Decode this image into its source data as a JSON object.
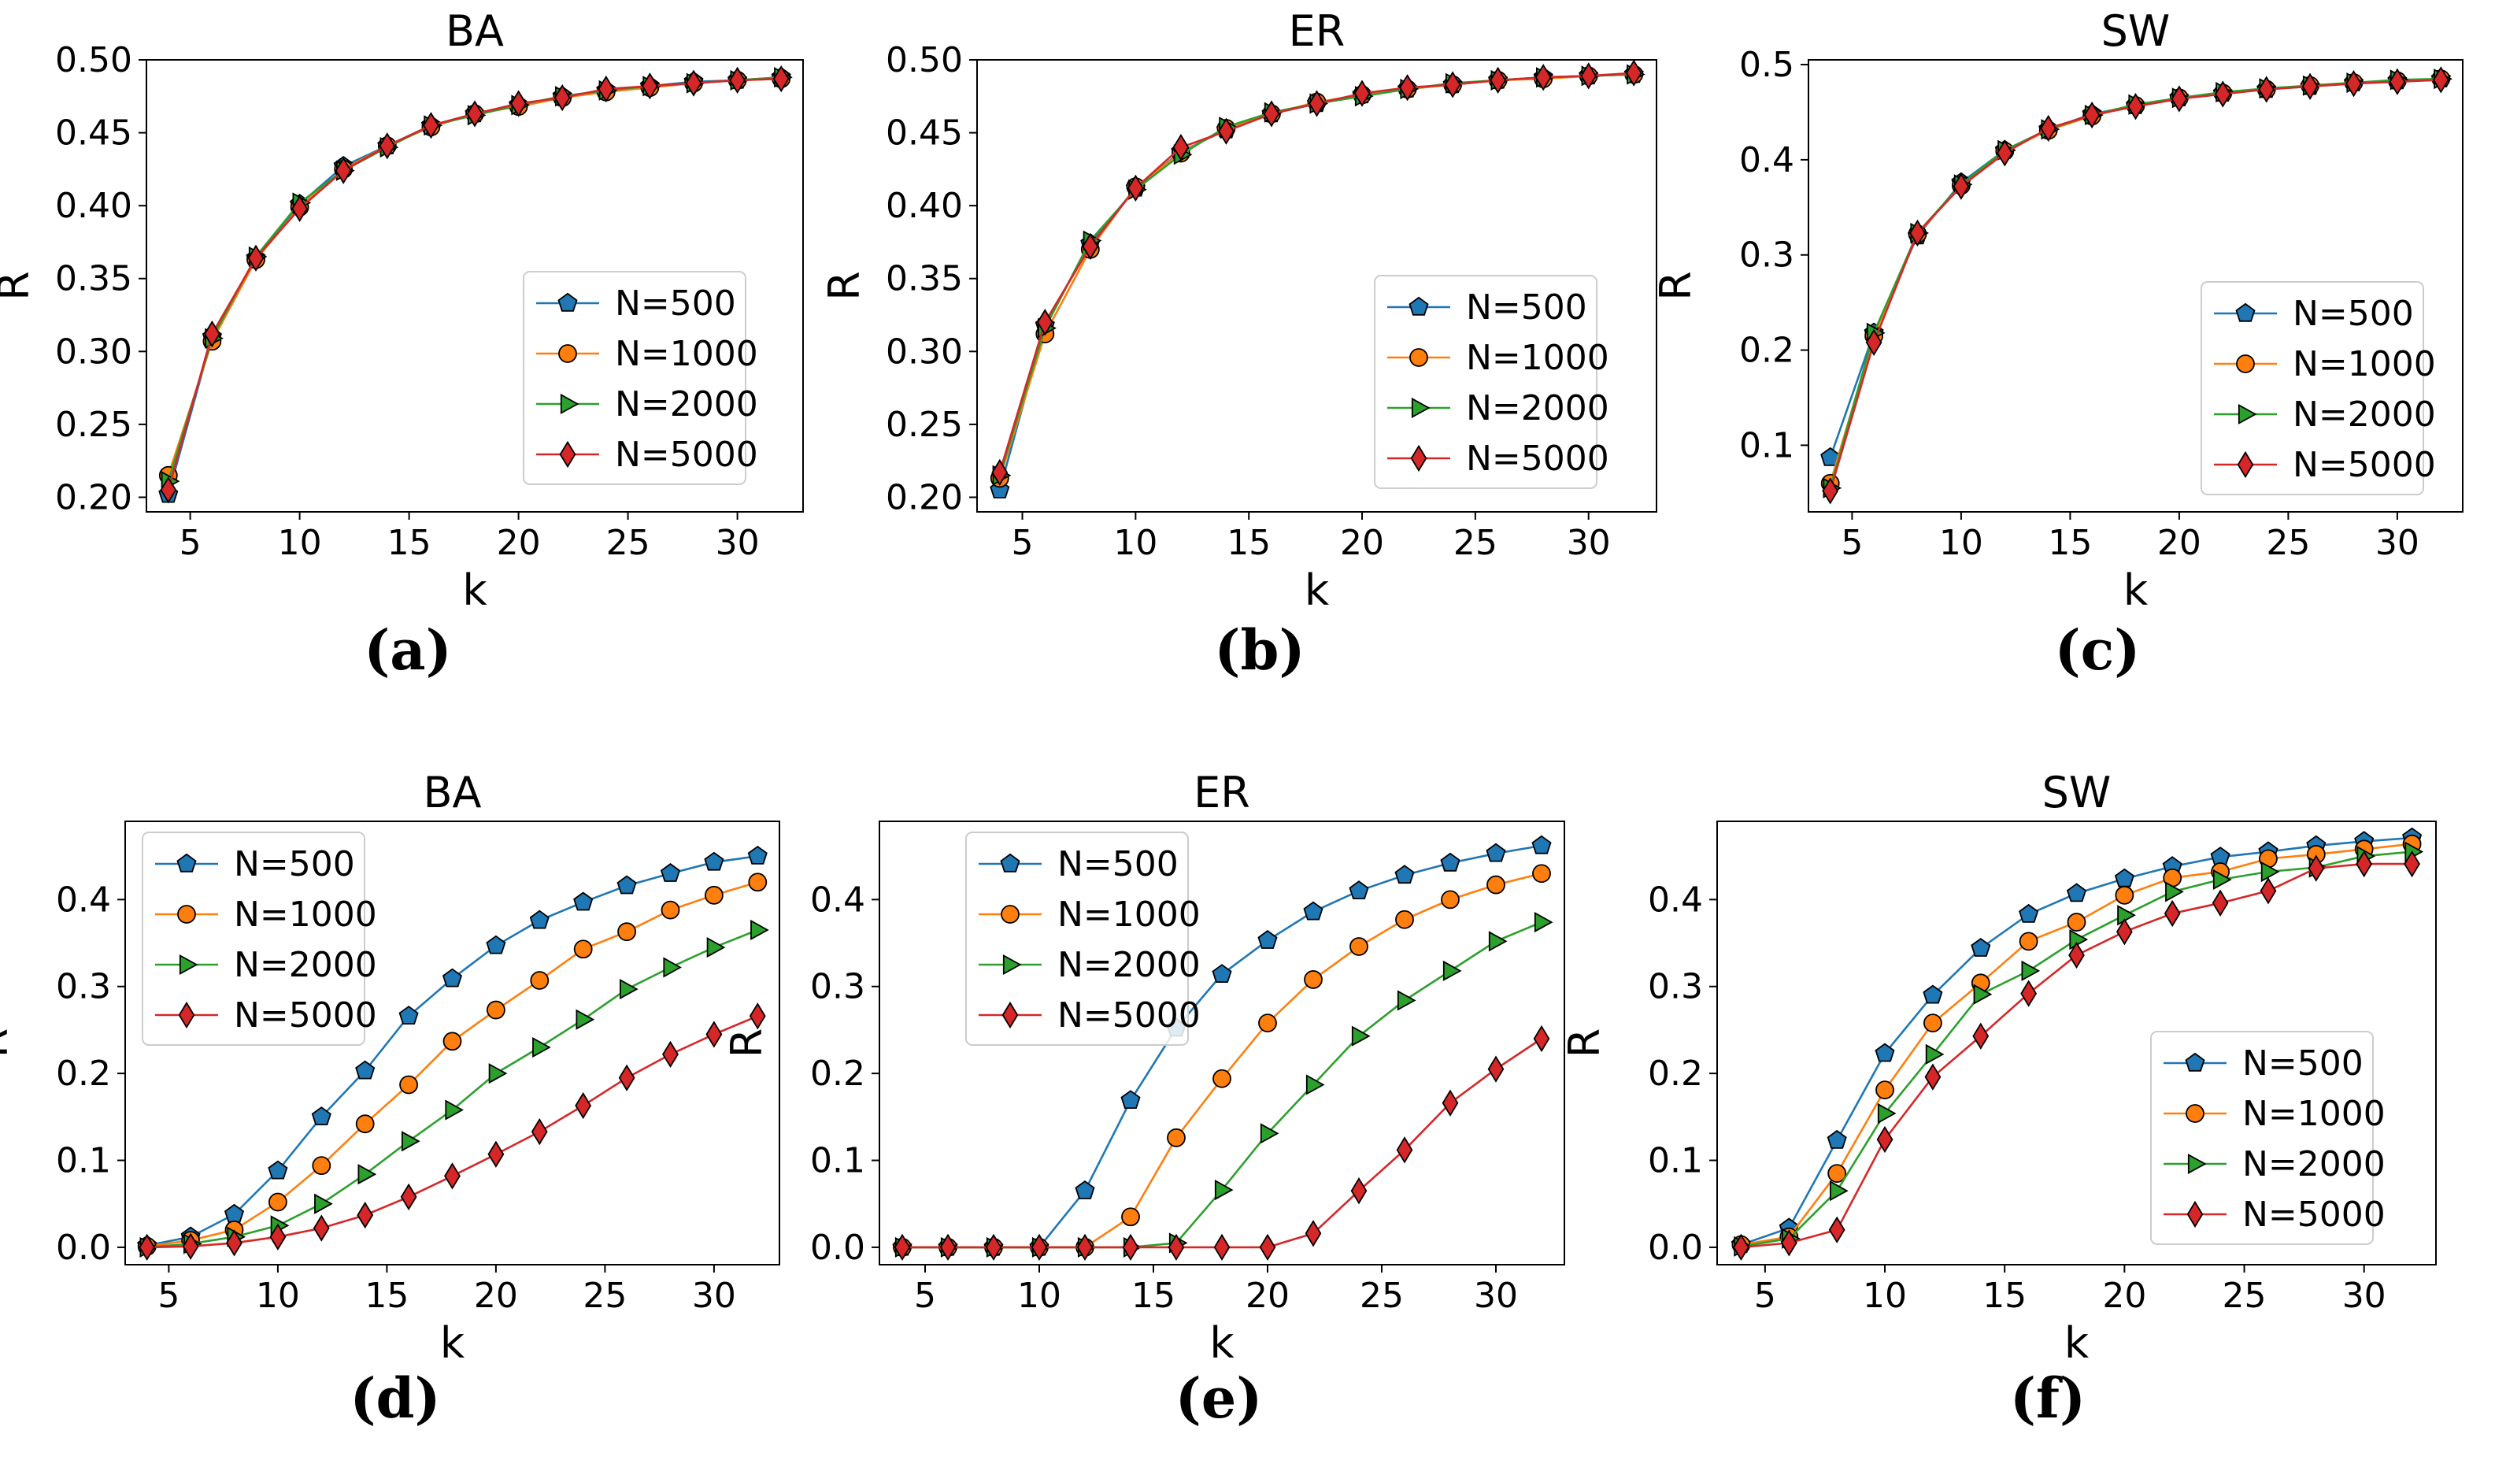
{
  "colors": {
    "N500": "#1f77b4",
    "N1000": "#ff7f0e",
    "N2000": "#2ca02c",
    "N5000": "#d62728",
    "axis": "#000000",
    "marker_edge": "#000000"
  },
  "chart_data": [
    {
      "type": "line",
      "panel_label": "(a)",
      "title": "BA",
      "xlabel": "k",
      "ylabel": "R",
      "xlim": [
        3,
        33
      ],
      "ylim": [
        0.19,
        0.5
      ],
      "xticks": [
        5,
        10,
        15,
        20,
        25,
        30
      ],
      "yticks": [
        0.2,
        0.25,
        0.3,
        0.35,
        0.4,
        0.45,
        0.5
      ],
      "ytick_labels": [
        "0.20",
        "0.25",
        "0.30",
        "0.35",
        "0.40",
        "0.45",
        "0.50"
      ],
      "legend_position": "lower-right",
      "x": [
        4,
        6,
        8,
        10,
        12,
        14,
        16,
        18,
        20,
        22,
        24,
        26,
        28,
        30,
        32
      ],
      "series": [
        {
          "name": "N=500",
          "marker": "pentagon",
          "color_key": "N500",
          "values": [
            0.202,
            0.31,
            0.364,
            0.401,
            0.427,
            0.441,
            0.455,
            0.463,
            0.469,
            0.475,
            0.479,
            0.482,
            0.485,
            0.486,
            0.488
          ]
        },
        {
          "name": "N=1000",
          "marker": "circle",
          "color_key": "N1000",
          "values": [
            0.215,
            0.307,
            0.363,
            0.399,
            0.425,
            0.441,
            0.454,
            0.463,
            0.468,
            0.474,
            0.478,
            0.481,
            0.484,
            0.486,
            0.487
          ]
        },
        {
          "name": "N=2000",
          "marker": "triangle-right",
          "color_key": "N2000",
          "values": [
            0.211,
            0.309,
            0.365,
            0.402,
            0.424,
            0.44,
            0.455,
            0.462,
            0.469,
            0.475,
            0.479,
            0.482,
            0.484,
            0.486,
            0.488
          ]
        },
        {
          "name": "N=5000",
          "marker": "diamond",
          "color_key": "N5000",
          "values": [
            0.205,
            0.312,
            0.364,
            0.398,
            0.424,
            0.441,
            0.455,
            0.463,
            0.47,
            0.474,
            0.48,
            0.482,
            0.484,
            0.486,
            0.487
          ]
        }
      ]
    },
    {
      "type": "line",
      "panel_label": "(b)",
      "title": "ER",
      "xlabel": "k",
      "ylabel": "R",
      "xlim": [
        3,
        33
      ],
      "ylim": [
        0.19,
        0.5
      ],
      "xticks": [
        5,
        10,
        15,
        20,
        25,
        30
      ],
      "yticks": [
        0.2,
        0.25,
        0.3,
        0.35,
        0.4,
        0.45,
        0.5
      ],
      "ytick_labels": [
        "0.20",
        "0.25",
        "0.30",
        "0.35",
        "0.40",
        "0.45",
        "0.50"
      ],
      "legend_position": "lower-right",
      "x": [
        4,
        6,
        8,
        10,
        12,
        14,
        16,
        18,
        20,
        22,
        24,
        26,
        28,
        30,
        32
      ],
      "series": [
        {
          "name": "N=500",
          "marker": "pentagon",
          "color_key": "N500",
          "values": [
            0.205,
            0.318,
            0.374,
            0.412,
            0.437,
            0.452,
            0.463,
            0.47,
            0.476,
            0.48,
            0.483,
            0.486,
            0.488,
            0.489,
            0.49
          ]
        },
        {
          "name": "N=1000",
          "marker": "circle",
          "color_key": "N1000",
          "values": [
            0.213,
            0.312,
            0.37,
            0.413,
            0.436,
            0.453,
            0.463,
            0.471,
            0.476,
            0.48,
            0.483,
            0.486,
            0.487,
            0.489,
            0.49
          ]
        },
        {
          "name": "N=2000",
          "marker": "triangle-right",
          "color_key": "N2000",
          "values": [
            0.215,
            0.316,
            0.376,
            0.411,
            0.435,
            0.454,
            0.464,
            0.47,
            0.475,
            0.48,
            0.484,
            0.486,
            0.488,
            0.489,
            0.49
          ]
        },
        {
          "name": "N=5000",
          "marker": "diamond",
          "color_key": "N5000",
          "values": [
            0.217,
            0.32,
            0.372,
            0.412,
            0.44,
            0.451,
            0.463,
            0.47,
            0.477,
            0.481,
            0.483,
            0.486,
            0.488,
            0.489,
            0.491
          ]
        }
      ]
    },
    {
      "type": "line",
      "panel_label": "(c)",
      "title": "SW",
      "xlabel": "k",
      "ylabel": "R",
      "xlim": [
        3,
        33
      ],
      "ylim": [
        0.03,
        0.505
      ],
      "xticks": [
        5,
        10,
        15,
        20,
        25,
        30
      ],
      "yticks": [
        0.1,
        0.2,
        0.3,
        0.4,
        0.5
      ],
      "ytick_labels": [
        "0.1",
        "0.2",
        "0.3",
        "0.4",
        "0.5"
      ],
      "legend_position": "lower-right",
      "x": [
        4,
        6,
        8,
        10,
        12,
        14,
        16,
        18,
        20,
        22,
        24,
        26,
        28,
        30,
        32
      ],
      "series": [
        {
          "name": "N=500",
          "marker": "pentagon",
          "color_key": "N500",
          "values": [
            0.087,
            0.218,
            0.32,
            0.376,
            0.41,
            0.432,
            0.448,
            0.457,
            0.465,
            0.47,
            0.474,
            0.477,
            0.481,
            0.483,
            0.485
          ]
        },
        {
          "name": "N=1000",
          "marker": "circle",
          "color_key": "N1000",
          "values": [
            0.06,
            0.215,
            0.322,
            0.373,
            0.409,
            0.431,
            0.446,
            0.457,
            0.465,
            0.47,
            0.474,
            0.478,
            0.481,
            0.483,
            0.485
          ]
        },
        {
          "name": "N=2000",
          "marker": "triangle-right",
          "color_key": "N2000",
          "values": [
            0.055,
            0.218,
            0.323,
            0.374,
            0.41,
            0.432,
            0.447,
            0.458,
            0.465,
            0.471,
            0.475,
            0.478,
            0.481,
            0.484,
            0.485
          ]
        },
        {
          "name": "N=5000",
          "marker": "diamond",
          "color_key": "N5000",
          "values": [
            0.052,
            0.208,
            0.323,
            0.372,
            0.407,
            0.433,
            0.447,
            0.456,
            0.464,
            0.469,
            0.474,
            0.477,
            0.48,
            0.482,
            0.484
          ]
        }
      ]
    },
    {
      "type": "line",
      "panel_label": "(d)",
      "title": "BA",
      "xlabel": "k",
      "ylabel": "R",
      "xlim": [
        3,
        33
      ],
      "ylim": [
        -0.02,
        0.49
      ],
      "xticks": [
        5,
        10,
        15,
        20,
        25,
        30
      ],
      "yticks": [
        0.0,
        0.1,
        0.2,
        0.3,
        0.4
      ],
      "ytick_labels": [
        "0.0",
        "0.1",
        "0.2",
        "0.3",
        "0.4"
      ],
      "legend_position": "upper-left",
      "x": [
        4,
        6,
        8,
        10,
        12,
        14,
        16,
        18,
        20,
        22,
        24,
        26,
        28,
        30,
        32
      ],
      "series": [
        {
          "name": "N=500",
          "marker": "pentagon",
          "color_key": "N500",
          "values": [
            0.002,
            0.012,
            0.038,
            0.088,
            0.15,
            0.203,
            0.266,
            0.309,
            0.347,
            0.376,
            0.397,
            0.416,
            0.43,
            0.443,
            0.45
          ]
        },
        {
          "name": "N=1000",
          "marker": "circle",
          "color_key": "N1000",
          "values": [
            0.001,
            0.008,
            0.02,
            0.052,
            0.094,
            0.142,
            0.187,
            0.237,
            0.273,
            0.307,
            0.343,
            0.363,
            0.388,
            0.405,
            0.42
          ]
        },
        {
          "name": "N=2000",
          "marker": "triangle-right",
          "color_key": "N2000",
          "values": [
            0.0,
            0.004,
            0.012,
            0.025,
            0.05,
            0.084,
            0.122,
            0.158,
            0.2,
            0.23,
            0.262,
            0.297,
            0.322,
            0.345,
            0.365
          ]
        },
        {
          "name": "N=5000",
          "marker": "diamond",
          "color_key": "N5000",
          "values": [
            0.0,
            0.001,
            0.005,
            0.012,
            0.022,
            0.037,
            0.058,
            0.082,
            0.107,
            0.133,
            0.163,
            0.195,
            0.222,
            0.245,
            0.266
          ]
        }
      ]
    },
    {
      "type": "line",
      "panel_label": "(e)",
      "title": "ER",
      "xlabel": "k",
      "ylabel": "R",
      "xlim": [
        3,
        33
      ],
      "ylim": [
        -0.02,
        0.49
      ],
      "xticks": [
        5,
        10,
        15,
        20,
        25,
        30
      ],
      "yticks": [
        0.0,
        0.1,
        0.2,
        0.3,
        0.4
      ],
      "ytick_labels": [
        "0.0",
        "0.1",
        "0.2",
        "0.3",
        "0.4"
      ],
      "legend_position": "upper-left",
      "x": [
        4,
        6,
        8,
        10,
        12,
        14,
        16,
        18,
        20,
        22,
        24,
        26,
        28,
        30,
        32
      ],
      "series": [
        {
          "name": "N=500",
          "marker": "pentagon",
          "color_key": "N500",
          "values": [
            0.0,
            0.0,
            0.0,
            0.0,
            0.065,
            0.169,
            0.252,
            0.314,
            0.353,
            0.386,
            0.41,
            0.428,
            0.442,
            0.453,
            0.462
          ]
        },
        {
          "name": "N=1000",
          "marker": "circle",
          "color_key": "N1000",
          "values": [
            0.0,
            0.0,
            0.0,
            0.0,
            0.0,
            0.035,
            0.126,
            0.194,
            0.258,
            0.308,
            0.346,
            0.377,
            0.4,
            0.417,
            0.43
          ]
        },
        {
          "name": "N=2000",
          "marker": "triangle-right",
          "color_key": "N2000",
          "values": [
            0.0,
            0.0,
            0.0,
            0.0,
            0.0,
            0.0,
            0.005,
            0.066,
            0.131,
            0.187,
            0.243,
            0.284,
            0.318,
            0.352,
            0.374
          ]
        },
        {
          "name": "N=5000",
          "marker": "diamond",
          "color_key": "N5000",
          "values": [
            0.0,
            0.0,
            0.0,
            0.0,
            0.0,
            0.0,
            0.0,
            0.0,
            0.0,
            0.016,
            0.065,
            0.112,
            0.166,
            0.205,
            0.24
          ]
        }
      ]
    },
    {
      "type": "line",
      "panel_label": "(f)",
      "title": "SW",
      "xlabel": "k",
      "ylabel": "R",
      "xlim": [
        3,
        33
      ],
      "ylim": [
        -0.02,
        0.49
      ],
      "xticks": [
        5,
        10,
        15,
        20,
        25,
        30
      ],
      "yticks": [
        0.0,
        0.1,
        0.2,
        0.3,
        0.4
      ],
      "ytick_labels": [
        "0.0",
        "0.1",
        "0.2",
        "0.3",
        "0.4"
      ],
      "legend_position": "lower-right",
      "x": [
        4,
        6,
        8,
        10,
        12,
        14,
        16,
        18,
        20,
        22,
        24,
        26,
        28,
        30,
        32
      ],
      "series": [
        {
          "name": "N=500",
          "marker": "pentagon",
          "color_key": "N500",
          "values": [
            0.003,
            0.022,
            0.123,
            0.223,
            0.29,
            0.344,
            0.383,
            0.407,
            0.424,
            0.438,
            0.449,
            0.455,
            0.462,
            0.467,
            0.471
          ]
        },
        {
          "name": "N=1000",
          "marker": "circle",
          "color_key": "N1000",
          "values": [
            0.003,
            0.012,
            0.085,
            0.181,
            0.258,
            0.304,
            0.352,
            0.374,
            0.405,
            0.425,
            0.432,
            0.447,
            0.452,
            0.458,
            0.464
          ]
        },
        {
          "name": "N=2000",
          "marker": "triangle-right",
          "color_key": "N2000",
          "values": [
            0.001,
            0.01,
            0.065,
            0.154,
            0.222,
            0.291,
            0.318,
            0.354,
            0.382,
            0.409,
            0.423,
            0.432,
            0.437,
            0.45,
            0.455
          ]
        },
        {
          "name": "N=5000",
          "marker": "diamond",
          "color_key": "N5000",
          "values": [
            0.0,
            0.005,
            0.02,
            0.124,
            0.196,
            0.243,
            0.292,
            0.336,
            0.363,
            0.384,
            0.396,
            0.41,
            0.436,
            0.441,
            0.441
          ]
        }
      ]
    }
  ]
}
